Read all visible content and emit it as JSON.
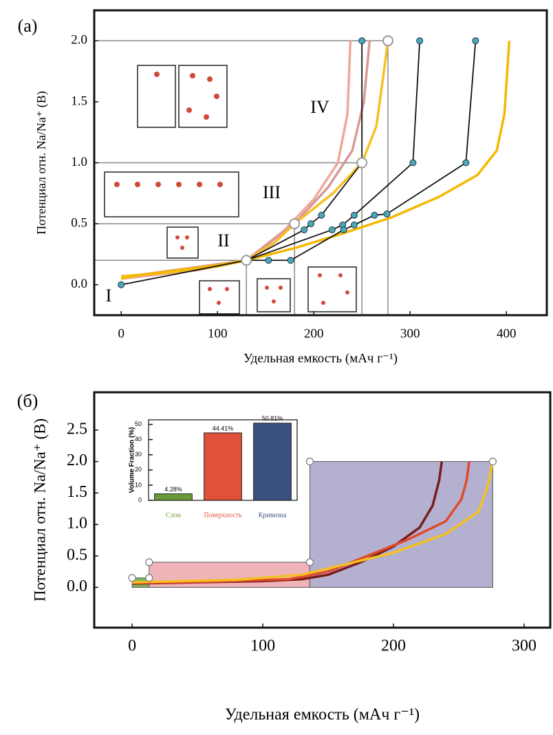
{
  "chart_data": [
    {
      "type": "line",
      "panel_label": "(a)",
      "xlabel": "Удельная емкость (мАч г⁻¹)",
      "ylabel": "Потенциал отн. Na/Na⁺ (В)",
      "xlim": [
        -28,
        442
      ],
      "ylim": [
        -0.25,
        2.25
      ],
      "xticks": [
        0,
        100,
        200,
        300,
        400
      ],
      "yticks": [
        {
          "value": 0,
          "label": "0.0"
        },
        0.5,
        {
          "value": 1,
          "label": "1.0"
        },
        1.5,
        {
          "value": 2,
          "label": "2.0"
        }
      ],
      "annotations": [
        "I",
        "II",
        "III",
        "IV"
      ],
      "reference_lines": [
        {
          "x": 130,
          "y": 0.2
        },
        {
          "x": 180,
          "y": 0.5
        },
        {
          "x": 250,
          "y": 1.0
        },
        {
          "x": 277,
          "y": 2.0
        }
      ],
      "series": [
        {
          "color": "#f0a898",
          "x": [
            0,
            80,
            130,
            170,
            200,
            225,
            235,
            238
          ],
          "y": [
            0.05,
            0.12,
            0.2,
            0.45,
            0.7,
            1.0,
            1.4,
            2.0
          ]
        },
        {
          "color": "#d89898",
          "x": [
            0,
            130,
            180,
            215,
            240,
            252,
            258
          ],
          "y": [
            0.06,
            0.2,
            0.5,
            0.8,
            1.1,
            1.5,
            2.0
          ]
        },
        {
          "color": "#f5c020",
          "x": [
            0,
            50,
            100,
            130,
            160,
            180,
            220,
            250,
            265,
            272,
            277
          ],
          "y": [
            0.07,
            0.1,
            0.15,
            0.2,
            0.35,
            0.5,
            0.75,
            1.0,
            1.3,
            1.7,
            2.0
          ]
        },
        {
          "color": "#f5b800",
          "x": [
            0,
            20,
            60,
            100,
            130,
            180,
            230,
            280,
            330,
            370,
            390,
            398,
            403
          ],
          "y": [
            0.05,
            0.08,
            0.12,
            0.16,
            0.2,
            0.3,
            0.42,
            0.55,
            0.72,
            0.9,
            1.1,
            1.4,
            2.0
          ]
        },
        {
          "color": "#111111",
          "marker_color": "#4aa8b8",
          "x": [
            0,
            130,
            190,
            197,
            208,
            250,
            250
          ],
          "y": [
            0,
            0.2,
            0.45,
            0.5,
            0.57,
            1.0,
            2.0
          ]
        },
        {
          "color": "#111111",
          "marker_color": "#4aa8b8",
          "x": [
            130,
            219,
            230,
            242,
            303,
            310
          ],
          "y": [
            0.2,
            0.45,
            0.49,
            0.57,
            1.0,
            2.0
          ]
        },
        {
          "color": "#111111",
          "marker_color": "#4aa8b8",
          "x": [
            130,
            153,
            176,
            231,
            242,
            263,
            276,
            358,
            368
          ],
          "y": [
            0.2,
            0.2,
            0.2,
            0.45,
            0.49,
            0.57,
            0.58,
            1.0,
            2.0
          ]
        },
        {
          "marker_color": "#ffffff",
          "x": [
            130,
            180,
            250,
            277
          ],
          "y": [
            0.2,
            0.5,
            1.0,
            2.0
          ]
        }
      ]
    },
    {
      "type": "line",
      "panel_label": "(б)",
      "xlabel": "Удельная емкость (мАч г⁻¹)",
      "ylabel": "Потенциал отн. Na/Na⁺ (В)",
      "xlim": [
        -29,
        320
      ],
      "ylim": [
        -0.64,
        3.1
      ],
      "xticks": [
        0,
        100,
        200,
        300
      ],
      "yticks": [
        {
          "value": 0,
          "label": "0.0"
        },
        0.5,
        {
          "value": 1,
          "label": "1.0"
        },
        1.5,
        {
          "value": 2,
          "label": "2.0"
        },
        2.5
      ],
      "regions": [
        {
          "x": [
            0,
            13
          ],
          "y": [
            0,
            0.15
          ],
          "color": "#7cb85a"
        },
        {
          "x": [
            13,
            136
          ],
          "y": [
            0,
            0.4
          ],
          "color": "#eeb4b8"
        },
        {
          "x": [
            136,
            276
          ],
          "y": [
            0,
            2.0
          ],
          "color": "#b4b0d0"
        }
      ],
      "series": [
        {
          "color": "#7a1a1a",
          "x": [
            0,
            50,
            100,
            130,
            150,
            175,
            200,
            220,
            230,
            235,
            237
          ],
          "y": [
            0.06,
            0.08,
            0.1,
            0.13,
            0.2,
            0.4,
            0.65,
            0.95,
            1.3,
            1.7,
            2.0
          ]
        },
        {
          "color": "#e04a2a",
          "x": [
            0,
            60,
            120,
            150,
            180,
            210,
            240,
            252,
            256,
            258
          ],
          "y": [
            0.07,
            0.09,
            0.13,
            0.25,
            0.5,
            0.75,
            1.05,
            1.4,
            1.7,
            2.0
          ]
        },
        {
          "color": "#f5c020",
          "x": [
            0,
            80,
            130,
            160,
            200,
            240,
            265,
            272,
            276
          ],
          "y": [
            0.08,
            0.12,
            0.2,
            0.35,
            0.55,
            0.85,
            1.2,
            1.6,
            2.0
          ]
        }
      ]
    },
    {
      "type": "bar",
      "ylabel": "Volume Fraction (%)",
      "categories": [
        "Слои",
        "Поверхность",
        "Кривизна"
      ],
      "values": [
        4.28,
        44.41,
        50.81
      ],
      "value_labels": [
        "4.28%",
        "44.41%",
        "50.81%"
      ],
      "colors": [
        "#6a9a3a",
        "#e0503a",
        "#3a5080"
      ],
      "ylim": [
        0,
        53
      ],
      "yticks": [
        0,
        10,
        20,
        30,
        40,
        50
      ]
    }
  ]
}
